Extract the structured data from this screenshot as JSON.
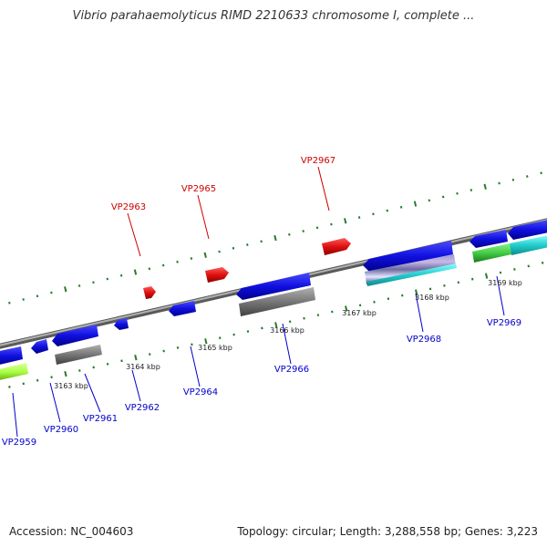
{
  "title": "Vibrio parahaemolyticus RIMD 2210633 chromosome I, complete ...",
  "footer": {
    "accession": "Accession: NC_004603",
    "topology": "Topology: circular; Length: 3,288,558 bp; Genes: 3,223"
  },
  "colors": {
    "backbone": "#8a8a8a",
    "forward_gene": "#e01010",
    "reverse_gene": "#1010e0",
    "gray_feature": "#7a7a7a",
    "green_feature": "#44cc44",
    "lime_feature": "#aaff44",
    "cyan_feature": "#22cccc",
    "outer_ticks": "#2a7a2a",
    "inner_ticks": "#2a7a2a",
    "label_red": "#d00000",
    "label_blue": "#0000cc"
  },
  "scale_labels": [
    "3163 kbp",
    "3164 kbp",
    "3165 kbp",
    "3166 kbp",
    "3167 kbp",
    "3168 kbp",
    "3169 kbp"
  ],
  "gene_labels_top": [
    "VP2963",
    "VP2965",
    "VP2967"
  ],
  "gene_labels_bottom": [
    "VP2959",
    "VP2960",
    "VP2961",
    "VP2962",
    "VP2964",
    "VP2966",
    "VP2968",
    "VP2969"
  ]
}
